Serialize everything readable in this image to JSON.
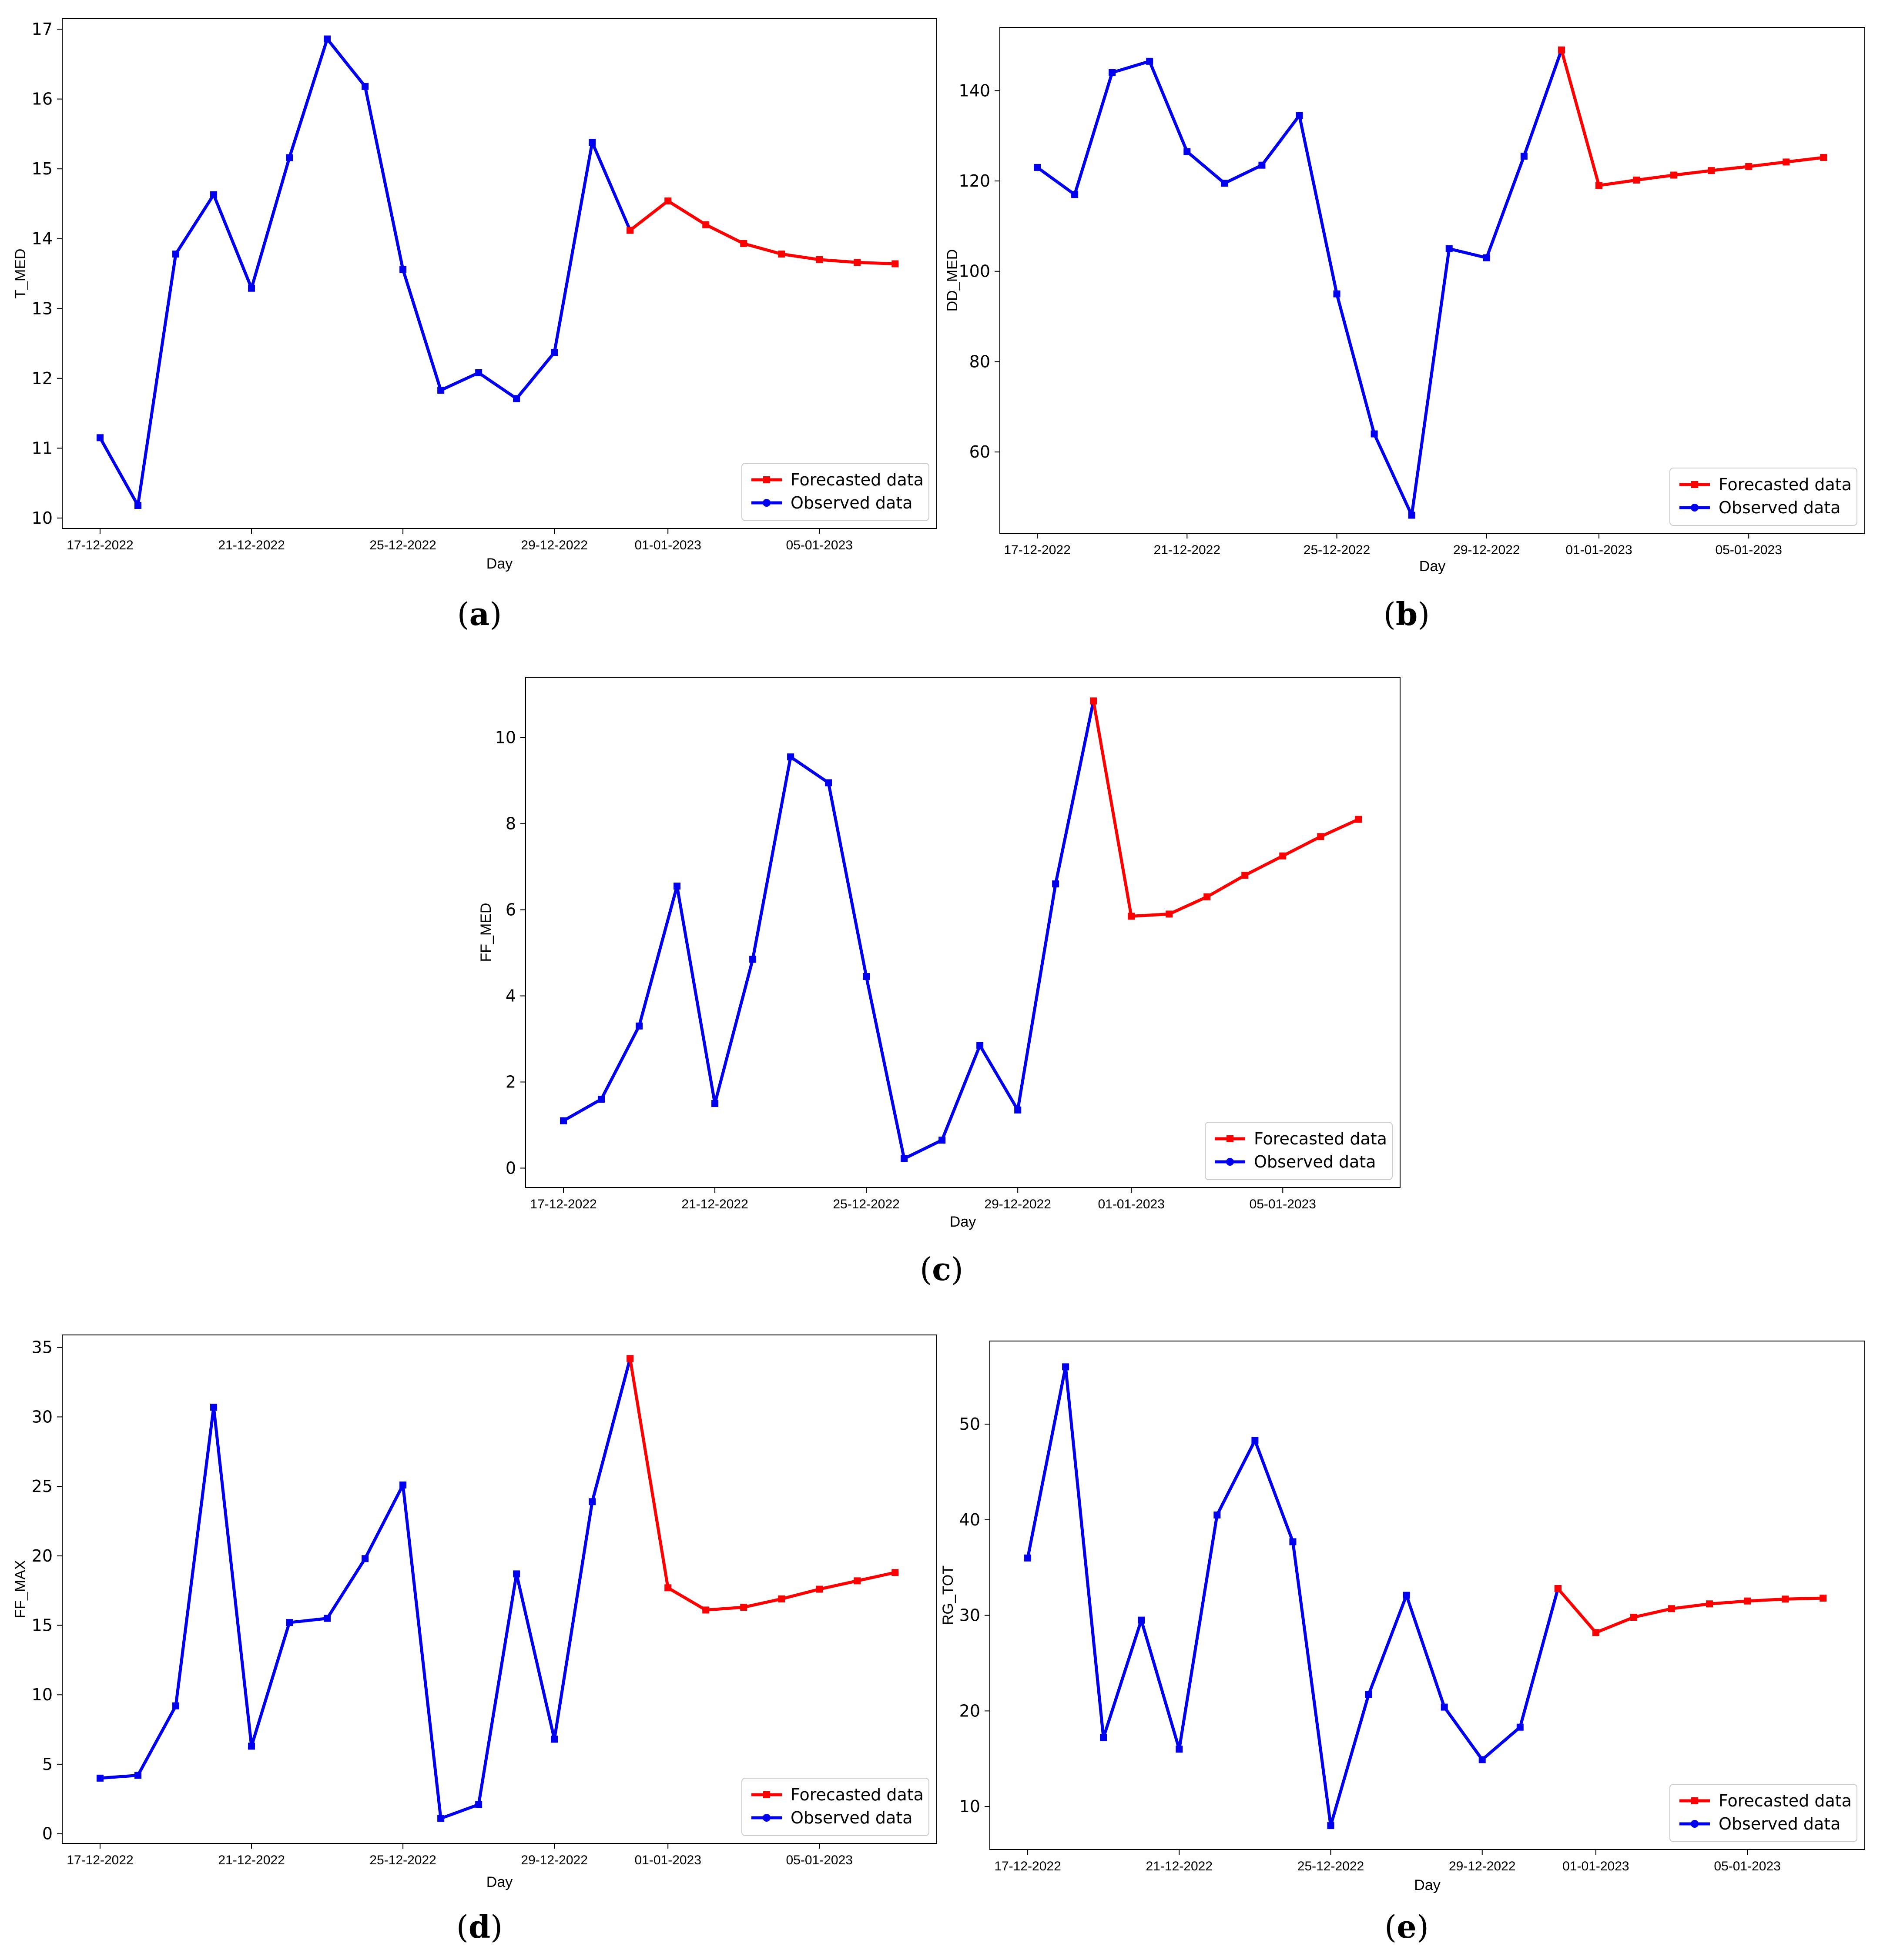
{
  "colors": {
    "forecast": "#ff0000",
    "observed": "#0000ee",
    "axis": "#000000"
  },
  "chart_data": [
    {
      "id": "a",
      "type": "line",
      "panel_label": "a",
      "xlabel": "Day",
      "ylabel": "T_MED",
      "ylim": [
        9.85,
        17.15
      ],
      "yticks": [
        10,
        11,
        12,
        13,
        14,
        15,
        16,
        17
      ],
      "xlim": [
        -1.0,
        22.1
      ],
      "xticks": [
        {
          "x": 0,
          "label": "17-12-2022"
        },
        {
          "x": 4,
          "label": "21-12-2022"
        },
        {
          "x": 8,
          "label": "25-12-2022"
        },
        {
          "x": 12,
          "label": "29-12-2022"
        },
        {
          "x": 15,
          "label": "01-01-2023"
        },
        {
          "x": 19,
          "label": "05-01-2023"
        }
      ],
      "legend": [
        "Forecasted data",
        "Observed data"
      ],
      "legend_position": "lower-right",
      "series": [
        {
          "name": "Observed data",
          "x": [
            0,
            1,
            2,
            3,
            4,
            5,
            6,
            7,
            8,
            9,
            10,
            11,
            12,
            13,
            14
          ],
          "values": [
            11.15,
            10.18,
            13.78,
            14.63,
            13.29,
            15.16,
            16.86,
            16.18,
            13.56,
            11.83,
            12.08,
            11.71,
            12.37,
            15.38,
            14.12
          ]
        },
        {
          "name": "Forecasted data",
          "x": [
            14,
            15,
            16,
            17,
            18,
            19,
            20,
            21
          ],
          "values": [
            14.12,
            14.54,
            14.2,
            13.93,
            13.78,
            13.7,
            13.66,
            13.64
          ]
        }
      ]
    },
    {
      "id": "b",
      "type": "line",
      "panel_label": "b",
      "xlabel": "Day",
      "ylabel": "DD_MED",
      "ylim": [
        42,
        154
      ],
      "yticks": [
        60,
        80,
        100,
        120,
        140
      ],
      "xlim": [
        -1.0,
        22.1
      ],
      "xticks": [
        {
          "x": 0,
          "label": "17-12-2022"
        },
        {
          "x": 4,
          "label": "21-12-2022"
        },
        {
          "x": 8,
          "label": "25-12-2022"
        },
        {
          "x": 12,
          "label": "29-12-2022"
        },
        {
          "x": 15,
          "label": "01-01-2023"
        },
        {
          "x": 19,
          "label": "05-01-2023"
        }
      ],
      "legend": [
        "Forecasted data",
        "Observed data"
      ],
      "legend_position": "lower-right",
      "series": [
        {
          "name": "Observed data",
          "x": [
            0,
            1,
            2,
            3,
            4,
            5,
            6,
            7,
            8,
            9,
            10,
            11,
            12,
            13,
            14
          ],
          "values": [
            123,
            117,
            144,
            146.5,
            126.5,
            119.5,
            123.5,
            134.5,
            95,
            64,
            46,
            105,
            103,
            125.5,
            149
          ]
        },
        {
          "name": "Forecasted data",
          "x": [
            14,
            15,
            16,
            17,
            18,
            19,
            20,
            21
          ],
          "values": [
            149,
            119,
            120.2,
            121.3,
            122.3,
            123.2,
            124.2,
            125.2
          ]
        }
      ]
    },
    {
      "id": "c",
      "type": "line",
      "panel_label": "c",
      "xlabel": "Day",
      "ylabel": "FF_MED",
      "ylim": [
        -0.45,
        11.4
      ],
      "yticks": [
        0,
        2,
        4,
        6,
        8,
        10
      ],
      "xlim": [
        -1.0,
        22.1
      ],
      "xticks": [
        {
          "x": 0,
          "label": "17-12-2022"
        },
        {
          "x": 4,
          "label": "21-12-2022"
        },
        {
          "x": 8,
          "label": "25-12-2022"
        },
        {
          "x": 12,
          "label": "29-12-2022"
        },
        {
          "x": 15,
          "label": "01-01-2023"
        },
        {
          "x": 19,
          "label": "05-01-2023"
        }
      ],
      "legend": [
        "Forecasted data",
        "Observed data"
      ],
      "legend_position": "lower-right",
      "series": [
        {
          "name": "Observed data",
          "x": [
            0,
            1,
            2,
            3,
            4,
            5,
            6,
            7,
            8,
            9,
            10,
            11,
            12,
            13,
            14
          ],
          "values": [
            1.1,
            1.6,
            3.3,
            6.55,
            1.5,
            4.85,
            9.55,
            8.95,
            4.45,
            0.22,
            0.65,
            2.85,
            1.35,
            6.6,
            10.85
          ]
        },
        {
          "name": "Forecasted data",
          "x": [
            14,
            15,
            16,
            17,
            18,
            19,
            20,
            21
          ],
          "values": [
            10.85,
            5.85,
            5.9,
            6.3,
            6.8,
            7.25,
            7.7,
            8.1
          ]
        }
      ]
    },
    {
      "id": "d",
      "type": "line",
      "panel_label": "d",
      "xlabel": "Day",
      "ylabel": "FF_MAX",
      "ylim": [
        -0.7,
        35.9
      ],
      "yticks": [
        0,
        5,
        10,
        15,
        20,
        25,
        30,
        35
      ],
      "xlim": [
        -1.0,
        22.1
      ],
      "xticks": [
        {
          "x": 0,
          "label": "17-12-2022"
        },
        {
          "x": 4,
          "label": "21-12-2022"
        },
        {
          "x": 8,
          "label": "25-12-2022"
        },
        {
          "x": 12,
          "label": "29-12-2022"
        },
        {
          "x": 15,
          "label": "01-01-2023"
        },
        {
          "x": 19,
          "label": "05-01-2023"
        }
      ],
      "legend": [
        "Forecasted data",
        "Observed data"
      ],
      "legend_position": "lower-right",
      "series": [
        {
          "name": "Observed data",
          "x": [
            0,
            1,
            2,
            3,
            4,
            5,
            6,
            7,
            8,
            9,
            10,
            11,
            12,
            13,
            14
          ],
          "values": [
            4.0,
            4.2,
            9.2,
            30.7,
            6.3,
            15.2,
            15.5,
            19.8,
            25.1,
            1.1,
            2.1,
            18.7,
            6.8,
            23.9,
            34.2
          ]
        },
        {
          "name": "Forecasted data",
          "x": [
            14,
            15,
            16,
            17,
            18,
            19,
            20,
            21
          ],
          "values": [
            34.2,
            17.7,
            16.1,
            16.3,
            16.9,
            17.6,
            18.2,
            18.8
          ]
        }
      ]
    },
    {
      "id": "e",
      "type": "line",
      "panel_label": "e",
      "xlabel": "Day",
      "ylabel": "RG_TOT",
      "ylim": [
        5.5,
        58.7
      ],
      "yticks": [
        10,
        20,
        30,
        40,
        50
      ],
      "xlim": [
        -1.0,
        22.1
      ],
      "xticks": [
        {
          "x": 0,
          "label": "17-12-2022"
        },
        {
          "x": 4,
          "label": "21-12-2022"
        },
        {
          "x": 8,
          "label": "25-12-2022"
        },
        {
          "x": 12,
          "label": "29-12-2022"
        },
        {
          "x": 15,
          "label": "01-01-2023"
        },
        {
          "x": 19,
          "label": "05-01-2023"
        }
      ],
      "legend": [
        "Forecasted data",
        "Observed data"
      ],
      "legend_position": "lower-right",
      "series": [
        {
          "name": "Observed data",
          "x": [
            0,
            1,
            2,
            3,
            4,
            5,
            6,
            7,
            8,
            9,
            10,
            11,
            12,
            13,
            14
          ],
          "values": [
            36,
            56,
            17.2,
            29.5,
            16,
            40.5,
            48.3,
            37.7,
            8,
            21.7,
            32.1,
            20.4,
            14.9,
            18.3,
            32.8
          ]
        },
        {
          "name": "Forecasted data",
          "x": [
            14,
            15,
            16,
            17,
            18,
            19,
            20,
            21
          ],
          "values": [
            32.8,
            28.2,
            29.8,
            30.7,
            31.2,
            31.5,
            31.7,
            31.8
          ]
        }
      ]
    }
  ]
}
